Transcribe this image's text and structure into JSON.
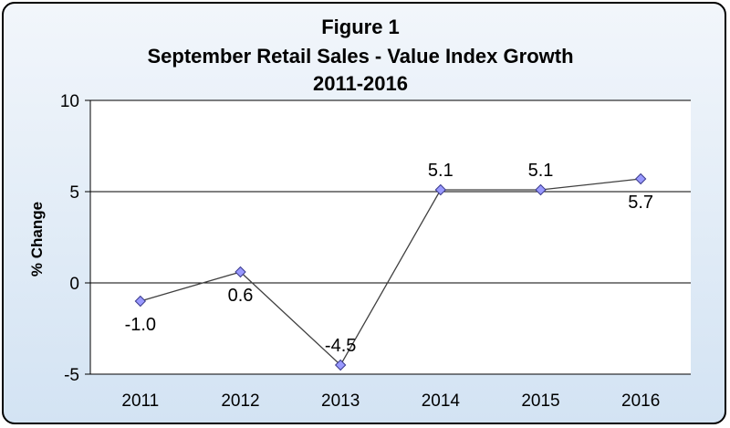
{
  "chart_data": {
    "type": "line",
    "title": [
      "Figure 1",
      "September Retail Sales - Value Index Growth",
      "2011-2016"
    ],
    "xlabel": "",
    "ylabel": "% Change",
    "categories": [
      "2011",
      "2012",
      "2013",
      "2014",
      "2015",
      "2016"
    ],
    "series": [
      {
        "values": [
          -1.0,
          0.6,
          -4.5,
          5.1,
          5.1,
          5.7
        ]
      }
    ],
    "data_labels": [
      "-1.0",
      "0.6",
      "-4.5",
      "5.1",
      "5.1",
      "5.7"
    ],
    "data_label_position": [
      "below",
      "below",
      "above",
      "above",
      "above",
      "below"
    ],
    "ylim": [
      -5,
      10
    ],
    "yticks": [
      -5,
      0,
      5,
      10
    ],
    "ytick_labels": [
      "-5",
      "0",
      "5",
      "10"
    ],
    "gridlines": "horizontal",
    "legend": "none",
    "colors": {
      "line": "#404040",
      "marker_fill": "#9999ff",
      "marker_stroke": "#3a3a8c",
      "plot_background": "#ffffff",
      "frame_background": "#dce8f5"
    }
  }
}
